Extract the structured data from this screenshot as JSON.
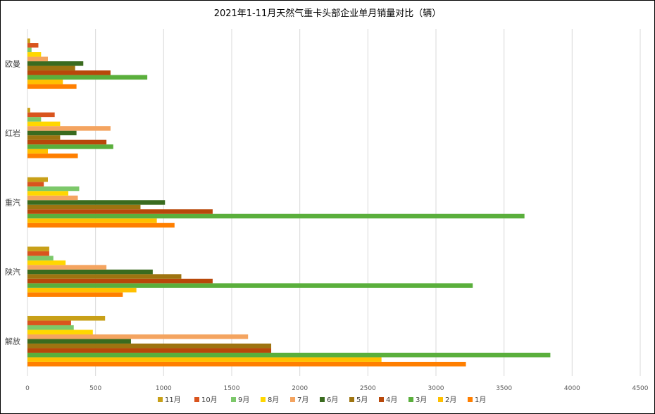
{
  "chart_data": {
    "type": "bar",
    "orientation": "horizontal",
    "title": "2021年1-11月天然气重卡头部企业单月销量对比（辆）",
    "categories": [
      "欧曼",
      "红岩",
      "重汽",
      "陕汽",
      "解放"
    ],
    "xlim": [
      0,
      4500
    ],
    "x_ticks": [
      "0",
      "500",
      "1000",
      "1500",
      "2000",
      "2500",
      "3000",
      "3500",
      "4000",
      "4500"
    ],
    "grid": true,
    "legend_position": "bottom",
    "series": [
      {
        "name": "1月",
        "color": "#FF7F00",
        "values": [
          360,
          370,
          1080,
          700,
          3220
        ]
      },
      {
        "name": "2月",
        "color": "#FFC000",
        "values": [
          260,
          150,
          950,
          800,
          2600
        ]
      },
      {
        "name": "3月",
        "color": "#5AAF3C",
        "values": [
          880,
          630,
          3650,
          3270,
          3840
        ]
      },
      {
        "name": "4月",
        "color": "#B8480A",
        "values": [
          610,
          580,
          1360,
          1360,
          1790
        ]
      },
      {
        "name": "5月",
        "color": "#9E7410",
        "values": [
          350,
          240,
          830,
          1130,
          1790
        ]
      },
      {
        "name": "6月",
        "color": "#3A6B1F",
        "values": [
          410,
          360,
          1010,
          920,
          760
        ]
      },
      {
        "name": "7月",
        "color": "#F4A460",
        "values": [
          150,
          610,
          370,
          580,
          1620
        ]
      },
      {
        "name": "8月",
        "color": "#FFD700",
        "values": [
          100,
          240,
          300,
          280,
          480
        ]
      },
      {
        "name": "9月",
        "color": "#7CC86A",
        "values": [
          30,
          100,
          380,
          190,
          340
        ]
      },
      {
        "name": "10月",
        "color": "#D9541E",
        "values": [
          80,
          200,
          120,
          160,
          320
        ]
      },
      {
        "name": "11月",
        "color": "#C8A018",
        "values": [
          20,
          20,
          150,
          160,
          570
        ]
      }
    ]
  }
}
